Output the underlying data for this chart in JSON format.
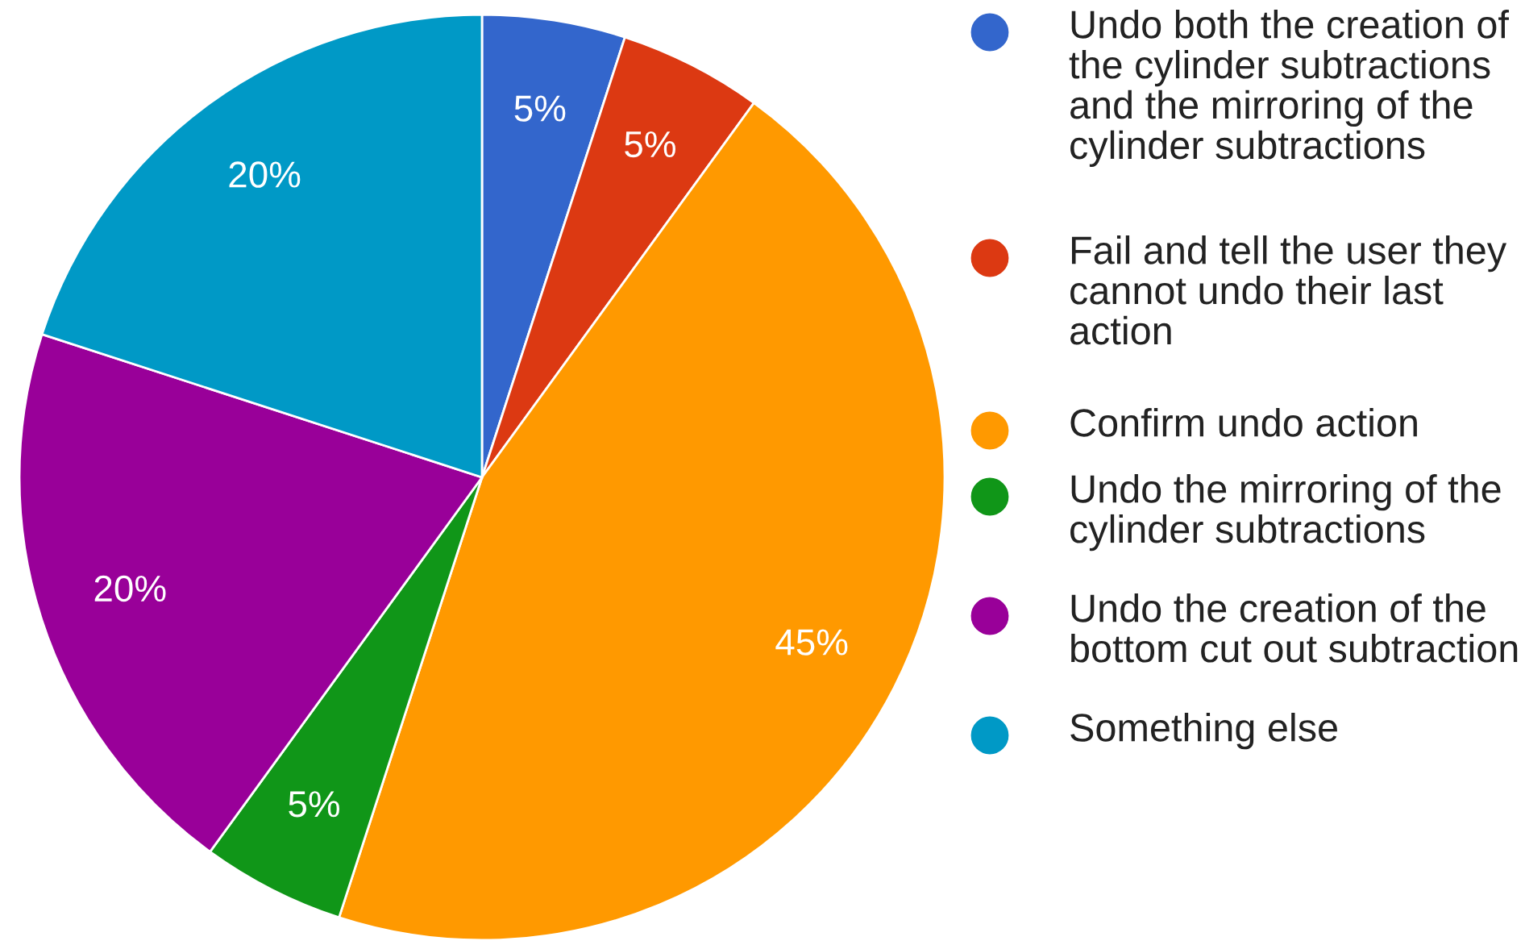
{
  "chart_data": {
    "type": "pie",
    "categories": [
      "Undo both the creation of the cylinder subtractions and the mirroring of the cylinder subtractions",
      "Fail and tell the user they cannot undo their last action",
      "Confirm undo action",
      "Undo the mirroring of the cylinder subtractions",
      "Undo the creation of the bottom cut out subtraction",
      "Something else"
    ],
    "values": [
      5,
      5,
      45,
      5,
      20,
      20
    ],
    "value_labels": [
      "5%",
      "5%",
      "45%",
      "5%",
      "20%",
      "20%"
    ],
    "colors": [
      "#3366cc",
      "#dc3912",
      "#ff9900",
      "#109618",
      "#990099",
      "#0099c6"
    ],
    "legend": "right"
  }
}
